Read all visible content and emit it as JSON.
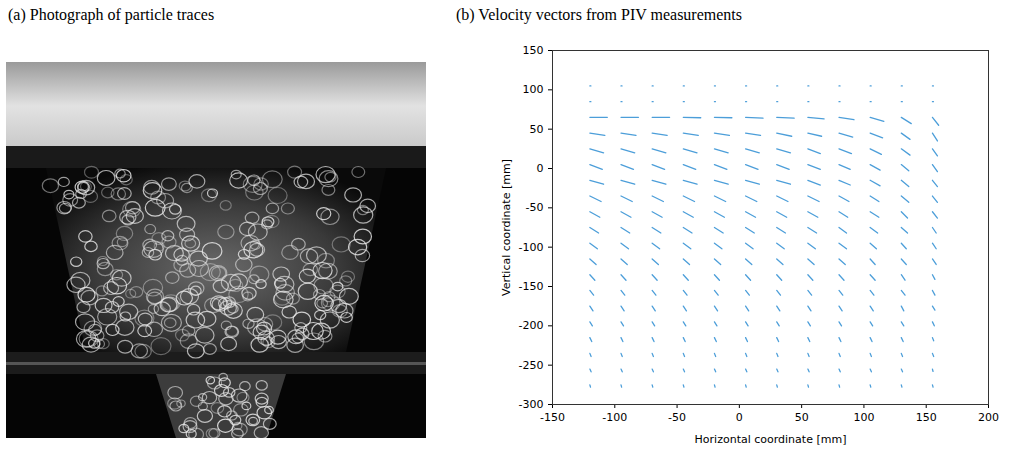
{
  "panel_a": {
    "title": "(a) Photograph of particle traces"
  },
  "chart_data": {
    "type": "quiver",
    "title": "(b) Velocity vectors from PIV measurements",
    "x_label": "Horizontal coordinate [mm]",
    "y_label": "Vertical coordinate [mm]",
    "xlim": [
      -150,
      200
    ],
    "ylim": [
      -300,
      150
    ],
    "xticks": [
      -150,
      -100,
      -50,
      0,
      50,
      100,
      150,
      200
    ],
    "yticks": [
      -300,
      -250,
      -200,
      -150,
      -100,
      -50,
      0,
      50,
      100,
      150
    ],
    "color": "#4c9ed9",
    "x": [
      -120,
      -95,
      -70,
      -45,
      -20,
      5,
      30,
      55,
      80,
      105,
      130,
      155
    ],
    "y": [
      105,
      85,
      65,
      45,
      25,
      5,
      -15,
      -35,
      -55,
      -75,
      -95,
      -115,
      -135,
      -155,
      -175,
      -195,
      -215,
      -235,
      -255,
      -275
    ],
    "u": [
      [
        0.8,
        0.8,
        0.8,
        0.8,
        0.8,
        0.8,
        0.8,
        0.8,
        0.8,
        0.8,
        0.8,
        0.8
      ],
      [
        0.8,
        0.8,
        0.8,
        0.8,
        0.8,
        0.8,
        0.8,
        0.8,
        0.8,
        0.8,
        0.8,
        0.8
      ],
      [
        14,
        14,
        14,
        14,
        14,
        14,
        14,
        13,
        12,
        11,
        8,
        5
      ],
      [
        12,
        12,
        12,
        12,
        12,
        12,
        12,
        11,
        11,
        10,
        7,
        4
      ],
      [
        11,
        11,
        11,
        11,
        11,
        11,
        11,
        10,
        10,
        9,
        7,
        4
      ],
      [
        10,
        10,
        10,
        10,
        10,
        10,
        10,
        10,
        9,
        8,
        6,
        4
      ],
      [
        11,
        11,
        11,
        11,
        11,
        11,
        11,
        10,
        9,
        8,
        6,
        4
      ],
      [
        9,
        9,
        9,
        9,
        9,
        9,
        9,
        9,
        8,
        7,
        6,
        4
      ],
      [
        8,
        8,
        8,
        8,
        8,
        8,
        8,
        8,
        7,
        7,
        5,
        4
      ],
      [
        7,
        7,
        7,
        7,
        7,
        7,
        7,
        7,
        6,
        6,
        5,
        3
      ],
      [
        6,
        6,
        6,
        6,
        6,
        6,
        6,
        6,
        6,
        5,
        4,
        3
      ],
      [
        5,
        5,
        5,
        5,
        5,
        5,
        5,
        5,
        5,
        4,
        4,
        3
      ],
      [
        4,
        4,
        4,
        4,
        4,
        4,
        4,
        4,
        4,
        4,
        3,
        2
      ],
      [
        3,
        3,
        3,
        3,
        3,
        3,
        3,
        3,
        3,
        3,
        3,
        2
      ],
      [
        2.5,
        2.5,
        2.5,
        2.5,
        2.5,
        2.5,
        2.5,
        2.5,
        2.5,
        2.5,
        2,
        2
      ],
      [
        2,
        2,
        2,
        2,
        2,
        2,
        2,
        2,
        2,
        2,
        2,
        1.5
      ],
      [
        1.5,
        1.5,
        1.5,
        1.5,
        1.5,
        1.5,
        1.5,
        1.5,
        1.5,
        1.5,
        1.5,
        1
      ],
      [
        1,
        1,
        1,
        1,
        1,
        1,
        1,
        1,
        1,
        1,
        1,
        1
      ],
      [
        1,
        1,
        1,
        1,
        1,
        1,
        1,
        1,
        1,
        1,
        1,
        0.5
      ],
      [
        0.5,
        0.5,
        0.5,
        0.5,
        0.5,
        0.5,
        0.5,
        0.5,
        0.5,
        0.5,
        0.5,
        0.5
      ]
    ],
    "v": [
      [
        0,
        0,
        0,
        0,
        0,
        0,
        0,
        0,
        0,
        0,
        0,
        0
      ],
      [
        0,
        0,
        0,
        0,
        0,
        0,
        0,
        0,
        0,
        0,
        0,
        0
      ],
      [
        0,
        0,
        0,
        -0.5,
        -0.5,
        -1,
        -1,
        -2,
        -3,
        -5,
        -8,
        -10
      ],
      [
        -3,
        -3,
        -3,
        -3,
        -3,
        -3,
        -4,
        -4,
        -5,
        -6,
        -8,
        -10
      ],
      [
        -5,
        -5,
        -5,
        -5,
        -5,
        -5,
        -5,
        -6,
        -6,
        -7,
        -8,
        -9
      ],
      [
        -6,
        -6,
        -6,
        -6,
        -6,
        -6,
        -6,
        -6,
        -6,
        -7,
        -8,
        -9
      ],
      [
        -5,
        -5,
        -5,
        -5,
        -5,
        -5,
        -5,
        -6,
        -6,
        -7,
        -8,
        -8
      ],
      [
        -7,
        -7,
        -7,
        -7,
        -7,
        -7,
        -7,
        -7,
        -7,
        -7,
        -8,
        -8
      ],
      [
        -7,
        -7,
        -7,
        -7,
        -7,
        -7,
        -7,
        -7,
        -7,
        -7,
        -8,
        -8
      ],
      [
        -7,
        -7,
        -7,
        -7,
        -7,
        -7,
        -7,
        -7,
        -7,
        -7,
        -7,
        -7
      ],
      [
        -7,
        -7,
        -7,
        -7,
        -7,
        -7,
        -7,
        -7,
        -7,
        -7,
        -7,
        -7
      ],
      [
        -7,
        -7,
        -7,
        -7,
        -7,
        -7,
        -7,
        -7,
        -7,
        -7,
        -7,
        -7
      ],
      [
        -7,
        -7,
        -7,
        -7,
        -7,
        -7,
        -7,
        -7,
        -7,
        -7,
        -7,
        -6
      ],
      [
        -6,
        -6,
        -6,
        -6,
        -6,
        -6,
        -6,
        -6,
        -6,
        -6,
        -6,
        -6
      ],
      [
        -6,
        -6,
        -6,
        -6,
        -6,
        -6,
        -6,
        -6,
        -6,
        -6,
        -6,
        -5
      ],
      [
        -5,
        -5,
        -5,
        -5,
        -5,
        -5,
        -5,
        -5,
        -5,
        -5,
        -5,
        -5
      ],
      [
        -5,
        -5,
        -5,
        -5,
        -5,
        -5,
        -5,
        -5,
        -5,
        -5,
        -5,
        -4
      ],
      [
        -4,
        -4,
        -4,
        -4,
        -4,
        -4,
        -4,
        -4,
        -4,
        -4,
        -4,
        -4
      ],
      [
        -3.5,
        -3.5,
        -3.5,
        -3.5,
        -3.5,
        -3.5,
        -3.5,
        -3.5,
        -3.5,
        -3.5,
        -3.5,
        -3
      ],
      [
        -3,
        -3,
        -3,
        -3,
        -3,
        -3,
        -3,
        -3,
        -3,
        -3,
        -3,
        -3
      ]
    ]
  }
}
